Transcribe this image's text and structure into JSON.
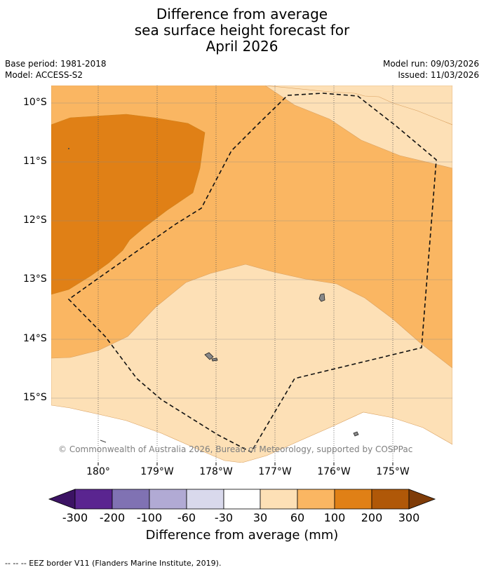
{
  "title": {
    "line1": "Difference from average",
    "line2": "sea surface height forecast for",
    "line3": "April 2026"
  },
  "meta": {
    "base_period": "Base period: 1981-2018",
    "model": "Model: ACCESS-S2",
    "model_run": "Model run: 09/03/2026",
    "issued": "Issued: 11/03/2026"
  },
  "map": {
    "lat_labels": [
      "10°S",
      "11°S",
      "12°S",
      "13°S",
      "14°S",
      "15°S"
    ],
    "lon_labels": [
      "180°",
      "179°W",
      "178°W",
      "177°W",
      "176°W",
      "175°W"
    ],
    "copyright": "© Commonwealth of Australia 2026, Bureau of Meteorology, supported by COSPPac"
  },
  "colorbar": {
    "ticks": [
      "-300",
      "-200",
      "-100",
      "-60",
      "-30",
      "30",
      "60",
      "100",
      "200",
      "300"
    ],
    "colors": [
      "#3c1364",
      "#5a2590",
      "#8072b3",
      "#b1aad4",
      "#d9d9ec",
      "#ffffff",
      "#fde0b6",
      "#fab662",
      "#e08016",
      "#b05808",
      "#7f3c08"
    ],
    "title": "Difference from average (mm)"
  },
  "footer": {
    "legend": "--  --  -- EEZ border V11 (Flanders Marine Institute, 2019)."
  }
}
